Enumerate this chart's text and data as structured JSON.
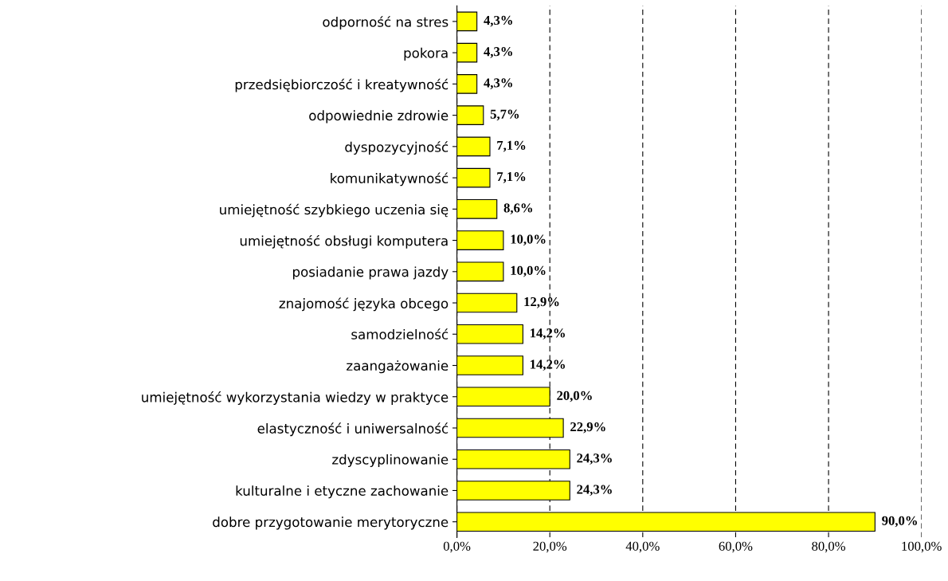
{
  "chart_data": {
    "type": "bar",
    "orientation": "horizontal",
    "categories": [
      "odporność na stres",
      "pokora",
      "przedsiębiorczość i kreatywność",
      "odpowiednie zdrowie",
      "dyspozycyjność",
      "komunikatywność",
      "umiejętność szybkiego uczenia się",
      "umiejętność obsługi komputera",
      "posiadanie prawa jazdy",
      "znajomość języka obcego",
      "samodzielność",
      "zaangażowanie",
      "umiejętność wykorzystania wiedzy w praktyce",
      "elastyczność i uniwersalność",
      "zdyscyplinowanie",
      "kulturalne i etyczne zachowanie",
      "dobre przygotowanie merytoryczne"
    ],
    "values": [
      4.3,
      4.3,
      4.3,
      5.7,
      7.1,
      7.1,
      8.6,
      10.0,
      10.0,
      12.9,
      14.2,
      14.2,
      20.0,
      22.9,
      24.3,
      24.3,
      90.0
    ],
    "value_labels": [
      "4,3%",
      "4,3%",
      "4,3%",
      "5,7%",
      "7,1%",
      "7,1%",
      "8,6%",
      "10,0%",
      "10,0%",
      "12,9%",
      "14,2%",
      "14,2%",
      "20,0%",
      "22,9%",
      "24,3%",
      "24,3%",
      "90,0%"
    ],
    "color": "#ffff00",
    "xlim": [
      0,
      100
    ],
    "xticks": [
      {
        "value": 0,
        "label": "0,0%"
      },
      {
        "value": 20,
        "label": "20,0%"
      },
      {
        "value": 40,
        "label": "40,0%"
      },
      {
        "value": 60,
        "label": "60,0%"
      },
      {
        "value": 80,
        "label": "80,0%"
      },
      {
        "value": 100,
        "label": "100,0%"
      }
    ],
    "grid": "x",
    "line_style": "dashed",
    "legend": false
  }
}
